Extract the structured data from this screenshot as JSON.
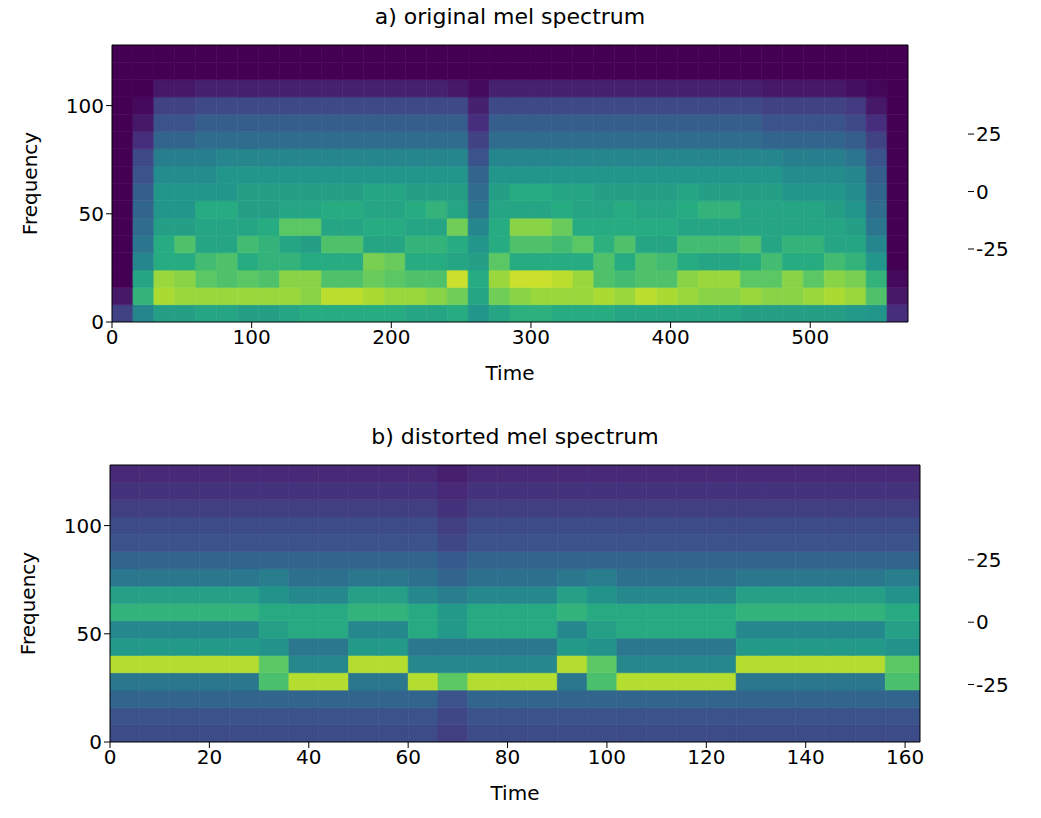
{
  "chart_data": [
    {
      "type": "heatmap",
      "title": "a) original mel spectrum",
      "x_label": "Time",
      "y_label": "Frequency",
      "color": "viridis",
      "xlim": [
        0,
        570
      ],
      "xticks": [
        0,
        100,
        200,
        300,
        400,
        500
      ],
      "ylim": [
        0,
        128
      ],
      "yticks": [
        0,
        50,
        100
      ],
      "x_bins": [
        0,
        15,
        30,
        45,
        60,
        75,
        90,
        105,
        120,
        135,
        150,
        165,
        180,
        195,
        210,
        225,
        240,
        255,
        270,
        285,
        300,
        315,
        330,
        345,
        360,
        375,
        390,
        405,
        420,
        435,
        450,
        465,
        480,
        495,
        510,
        525,
        540,
        555,
        570
      ],
      "y_bins": [
        0,
        8,
        16,
        24,
        32,
        40,
        48,
        56,
        64,
        72,
        80,
        88,
        96,
        104,
        112,
        120,
        128
      ],
      "cells": [
        [
          -20,
          0,
          8,
          8,
          10,
          10,
          8,
          8,
          10,
          12,
          12,
          12,
          12,
          12,
          10,
          10,
          12,
          5,
          10,
          14,
          14,
          12,
          12,
          12,
          10,
          10,
          10,
          10,
          10,
          10,
          8,
          8,
          8,
          8,
          8,
          6,
          5,
          -25
        ],
        [
          -30,
          15,
          32,
          30,
          30,
          30,
          30,
          30,
          30,
          28,
          34,
          34,
          32,
          30,
          30,
          28,
          25,
          10,
          25,
          28,
          30,
          30,
          30,
          32,
          30,
          34,
          32,
          30,
          28,
          28,
          30,
          28,
          28,
          30,
          32,
          30,
          20,
          -30
        ],
        [
          -35,
          10,
          30,
          28,
          22,
          20,
          22,
          20,
          28,
          28,
          20,
          20,
          24,
          22,
          20,
          20,
          36,
          12,
          30,
          36,
          36,
          34,
          30,
          20,
          18,
          20,
          20,
          28,
          30,
          30,
          22,
          22,
          28,
          22,
          28,
          26,
          15,
          -33
        ],
        [
          -35,
          0,
          12,
          12,
          18,
          20,
          12,
          15,
          15,
          12,
          12,
          12,
          26,
          24,
          12,
          12,
          10,
          8,
          22,
          12,
          12,
          12,
          12,
          20,
          12,
          20,
          18,
          12,
          10,
          10,
          12,
          18,
          12,
          12,
          18,
          15,
          5,
          -35
        ],
        [
          -35,
          -5,
          12,
          20,
          10,
          10,
          18,
          15,
          10,
          8,
          20,
          20,
          10,
          10,
          15,
          15,
          12,
          5,
          12,
          20,
          20,
          18,
          22,
          14,
          20,
          10,
          10,
          18,
          18,
          18,
          20,
          10,
          15,
          15,
          10,
          10,
          0,
          -35
        ],
        [
          -35,
          -8,
          8,
          8,
          10,
          10,
          10,
          12,
          22,
          22,
          10,
          10,
          12,
          12,
          10,
          10,
          25,
          0,
          12,
          28,
          28,
          24,
          12,
          12,
          12,
          12,
          12,
          10,
          10,
          10,
          10,
          10,
          10,
          10,
          10,
          8,
          -5,
          -35
        ],
        [
          -35,
          -10,
          5,
          5,
          12,
          12,
          8,
          8,
          10,
          10,
          12,
          12,
          10,
          10,
          12,
          15,
          10,
          -5,
          10,
          10,
          10,
          12,
          10,
          10,
          12,
          10,
          10,
          12,
          15,
          15,
          10,
          10,
          10,
          10,
          8,
          5,
          -8,
          -35
        ],
        [
          -35,
          -12,
          5,
          5,
          5,
          5,
          8,
          8,
          8,
          8,
          8,
          8,
          10,
          10,
          8,
          8,
          8,
          -8,
          8,
          12,
          12,
          10,
          10,
          8,
          8,
          8,
          8,
          10,
          8,
          8,
          8,
          8,
          5,
          5,
          5,
          2,
          -10,
          -35
        ],
        [
          -35,
          -15,
          2,
          2,
          2,
          5,
          5,
          5,
          5,
          5,
          5,
          5,
          5,
          5,
          5,
          5,
          5,
          -10,
          5,
          5,
          5,
          5,
          5,
          5,
          5,
          5,
          5,
          5,
          5,
          5,
          5,
          5,
          2,
          2,
          2,
          0,
          -12,
          -35
        ],
        [
          -35,
          -18,
          -2,
          -2,
          -2,
          0,
          0,
          0,
          0,
          0,
          0,
          0,
          0,
          0,
          0,
          0,
          0,
          -15,
          0,
          0,
          0,
          0,
          0,
          0,
          0,
          0,
          0,
          0,
          0,
          0,
          0,
          0,
          -2,
          -2,
          -2,
          -5,
          -15,
          -35
        ],
        [
          -35,
          -25,
          -10,
          -10,
          -8,
          -8,
          -8,
          -8,
          -8,
          -8,
          -8,
          -8,
          -8,
          -8,
          -8,
          -8,
          -8,
          -20,
          -8,
          -8,
          -8,
          -8,
          -8,
          -8,
          -8,
          -8,
          -8,
          -8,
          -8,
          -8,
          -8,
          -10,
          -10,
          -10,
          -10,
          -12,
          -20,
          -35
        ],
        [
          -35,
          -30,
          -15,
          -15,
          -12,
          -12,
          -12,
          -12,
          -12,
          -12,
          -12,
          -12,
          -12,
          -12,
          -12,
          -12,
          -12,
          -25,
          -12,
          -12,
          -12,
          -12,
          -12,
          -12,
          -12,
          -12,
          -12,
          -12,
          -12,
          -12,
          -12,
          -15,
          -15,
          -15,
          -15,
          -18,
          -25,
          -35
        ],
        [
          -35,
          -33,
          -20,
          -20,
          -18,
          -18,
          -18,
          -18,
          -18,
          -18,
          -18,
          -18,
          -18,
          -18,
          -18,
          -18,
          -18,
          -28,
          -18,
          -18,
          -18,
          -18,
          -18,
          -18,
          -18,
          -18,
          -18,
          -18,
          -18,
          -18,
          -18,
          -20,
          -20,
          -20,
          -20,
          -22,
          -30,
          -35
        ],
        [
          -35,
          -35,
          -30,
          -30,
          -28,
          -28,
          -28,
          -28,
          -28,
          -28,
          -28,
          -28,
          -28,
          -28,
          -28,
          -28,
          -30,
          -33,
          -28,
          -28,
          -28,
          -28,
          -28,
          -28,
          -28,
          -28,
          -28,
          -28,
          -28,
          -28,
          -28,
          -30,
          -30,
          -30,
          -30,
          -32,
          -34,
          -35
        ],
        [
          -35,
          -35,
          -35,
          -35,
          -35,
          -35,
          -35,
          -35,
          -35,
          -35,
          -35,
          -35,
          -35,
          -35,
          -35,
          -35,
          -35,
          -35,
          -35,
          -35,
          -35,
          -35,
          -35,
          -35,
          -35,
          -35,
          -35,
          -35,
          -35,
          -35,
          -35,
          -35,
          -35,
          -35,
          -35,
          -35,
          -35,
          -35
        ],
        [
          -35,
          -35,
          -35,
          -35,
          -35,
          -35,
          -35,
          -35,
          -35,
          -35,
          -35,
          -35,
          -35,
          -35,
          -35,
          -35,
          -35,
          -35,
          -35,
          -35,
          -35,
          -35,
          -35,
          -35,
          -35,
          -35,
          -35,
          -35,
          -35,
          -35,
          -35,
          -35,
          -35,
          -35,
          -35,
          -35,
          -35,
          -35
        ]
      ],
      "color_range": [
        -35,
        42
      ],
      "color_ticks": [
        -25,
        0,
        25
      ]
    },
    {
      "type": "heatmap",
      "title": "b) distorted mel spectrum",
      "x_label": "Time",
      "y_label": "Frequency",
      "color": "viridis",
      "xlim": [
        0,
        163
      ],
      "xticks": [
        0,
        20,
        40,
        60,
        80,
        100,
        120,
        140,
        160
      ],
      "ylim": [
        0,
        128
      ],
      "yticks": [
        0,
        50,
        100
      ],
      "x_bins": [
        0,
        6,
        12,
        18,
        24,
        30,
        36,
        42,
        48,
        54,
        60,
        66,
        72,
        78,
        84,
        90,
        96,
        102,
        108,
        114,
        120,
        126,
        132,
        138,
        144,
        150,
        156,
        163
      ],
      "y_bins": [
        0,
        8,
        16,
        24,
        32,
        40,
        48,
        56,
        64,
        72,
        80,
        88,
        96,
        104,
        112,
        120,
        128
      ],
      "cells": [
        [
          -12,
          -12,
          -12,
          -12,
          -12,
          -12,
          -12,
          -12,
          -12,
          -12,
          -12,
          -15,
          -12,
          -12,
          -12,
          -12,
          -12,
          -12,
          -12,
          -12,
          -12,
          -12,
          -12,
          -12,
          -12,
          -12,
          -12
        ],
        [
          -10,
          -10,
          -10,
          -10,
          -10,
          -10,
          -10,
          -10,
          -10,
          -10,
          -10,
          -13,
          -10,
          -10,
          -10,
          -10,
          -10,
          -10,
          -10,
          -10,
          -10,
          -10,
          -10,
          -10,
          -10,
          -10,
          -10
        ],
        [
          -5,
          -5,
          -5,
          -5,
          -5,
          -5,
          -5,
          -5,
          -5,
          -5,
          -5,
          -10,
          -5,
          -5,
          -5,
          -5,
          -5,
          -5,
          -5,
          -5,
          -5,
          -5,
          -5,
          -5,
          -5,
          -5,
          -5
        ],
        [
          0,
          0,
          0,
          0,
          0,
          22,
          35,
          35,
          0,
          0,
          35,
          25,
          35,
          35,
          35,
          0,
          22,
          35,
          35,
          35,
          35,
          0,
          0,
          0,
          0,
          0,
          22
        ],
        [
          35,
          35,
          35,
          35,
          35,
          25,
          5,
          5,
          35,
          35,
          5,
          5,
          5,
          5,
          5,
          35,
          25,
          5,
          5,
          5,
          5,
          35,
          35,
          35,
          35,
          35,
          25
        ],
        [
          10,
          10,
          10,
          10,
          10,
          8,
          0,
          0,
          10,
          10,
          0,
          0,
          0,
          0,
          0,
          10,
          8,
          0,
          0,
          0,
          0,
          10,
          10,
          10,
          10,
          10,
          8
        ],
        [
          5,
          5,
          5,
          5,
          5,
          12,
          15,
          15,
          5,
          5,
          15,
          10,
          15,
          15,
          15,
          5,
          12,
          15,
          15,
          15,
          15,
          5,
          5,
          5,
          5,
          5,
          12
        ],
        [
          18,
          18,
          18,
          18,
          18,
          15,
          15,
          15,
          18,
          18,
          15,
          10,
          15,
          15,
          15,
          18,
          15,
          15,
          15,
          15,
          15,
          18,
          18,
          18,
          18,
          18,
          15
        ],
        [
          12,
          12,
          12,
          12,
          12,
          8,
          5,
          5,
          12,
          12,
          5,
          2,
          5,
          5,
          5,
          12,
          8,
          5,
          5,
          5,
          5,
          12,
          12,
          12,
          12,
          12,
          8
        ],
        [
          0,
          0,
          0,
          0,
          0,
          2,
          -2,
          -2,
          0,
          0,
          -2,
          -5,
          -2,
          -2,
          -2,
          0,
          2,
          -2,
          -2,
          -2,
          -2,
          0,
          0,
          0,
          0,
          0,
          2
        ],
        [
          -5,
          -5,
          -5,
          -5,
          -5,
          -5,
          -5,
          -5,
          -5,
          -5,
          -5,
          -8,
          -5,
          -5,
          -5,
          -5,
          -5,
          -5,
          -5,
          -5,
          -5,
          -5,
          -5,
          -5,
          -5,
          -5,
          -5
        ],
        [
          -10,
          -10,
          -10,
          -10,
          -10,
          -10,
          -10,
          -10,
          -10,
          -10,
          -10,
          -13,
          -10,
          -10,
          -10,
          -10,
          -10,
          -10,
          -10,
          -10,
          -10,
          -10,
          -10,
          -10,
          -10,
          -10,
          -10
        ],
        [
          -12,
          -12,
          -12,
          -12,
          -12,
          -12,
          -12,
          -12,
          -12,
          -12,
          -12,
          -15,
          -12,
          -12,
          -12,
          -12,
          -12,
          -12,
          -12,
          -12,
          -12,
          -12,
          -12,
          -12,
          -12,
          -12,
          -12
        ],
        [
          -15,
          -15,
          -15,
          -15,
          -15,
          -15,
          -15,
          -15,
          -15,
          -15,
          -15,
          -18,
          -15,
          -15,
          -15,
          -15,
          -15,
          -15,
          -15,
          -15,
          -15,
          -15,
          -15,
          -15,
          -15,
          -15,
          -15
        ],
        [
          -18,
          -18,
          -18,
          -18,
          -18,
          -18,
          -18,
          -18,
          -18,
          -18,
          -18,
          -20,
          -18,
          -18,
          -18,
          -18,
          -18,
          -18,
          -18,
          -18,
          -18,
          -18,
          -18,
          -18,
          -18,
          -18,
          -18
        ],
        [
          -20,
          -20,
          -20,
          -20,
          -20,
          -20,
          -20,
          -20,
          -20,
          -20,
          -20,
          -22,
          -20,
          -20,
          -20,
          -20,
          -20,
          -20,
          -20,
          -20,
          -20,
          -20,
          -20,
          -20,
          -20,
          -20,
          -20
        ]
      ],
      "color_range": [
        -28,
        43
      ],
      "color_ticks": [
        -25,
        0,
        25
      ]
    }
  ]
}
